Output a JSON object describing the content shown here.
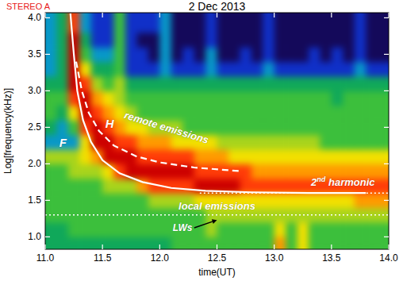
{
  "chart_data": {
    "type": "heatmap",
    "title": "2 Dec 2013",
    "subtitle": "STEREO A",
    "x_label": "time(UT)",
    "y_label": "Log[frequency(kHz)]",
    "xlim": [
      11.0,
      14.0
    ],
    "ylim": [
      0.83,
      4.07
    ],
    "xticks": [
      {
        "value": 11,
        "label": "11.0"
      },
      11.5,
      {
        "value": 12,
        "label": "12.0"
      },
      12.5,
      {
        "value": 13,
        "label": "13.0"
      },
      13.5,
      {
        "value": 14,
        "label": "14.0"
      }
    ],
    "yticks": [
      {
        "value": 1,
        "label": "1.0"
      },
      1.5,
      {
        "value": 2,
        "label": "2.0"
      },
      2.5,
      {
        "value": 3,
        "label": "3.0"
      },
      3.5,
      {
        "value": 4,
        "label": "4.0"
      }
    ],
    "grid": false,
    "x_edges": [
      11.0,
      11.1,
      11.2,
      11.3,
      11.4,
      11.5,
      11.6,
      11.7,
      11.8,
      11.9,
      12.0,
      12.1,
      12.2,
      12.3,
      12.4,
      12.5,
      12.6,
      12.7,
      12.8,
      12.9,
      13.0,
      13.1,
      13.2,
      13.3,
      13.4,
      13.5,
      13.6,
      13.7,
      13.8,
      13.9,
      14.0
    ],
    "y_edges": [
      0.83,
      1.0,
      1.2,
      1.4,
      1.6,
      1.8,
      2.0,
      2.2,
      2.4,
      2.6,
      2.8,
      3.0,
      3.2,
      3.4,
      3.6,
      3.8,
      4.07
    ],
    "z": [
      [
        4,
        4,
        4,
        4,
        4,
        4,
        4,
        4,
        4,
        4,
        4,
        5,
        5,
        5,
        5,
        5,
        5,
        5,
        5,
        5,
        8,
        5,
        7,
        5,
        5,
        5,
        5,
        5,
        5,
        5
      ],
      [
        4,
        4,
        5,
        5,
        5,
        5,
        5,
        5,
        5,
        5,
        5,
        5,
        5,
        5,
        6,
        5,
        5,
        5,
        5,
        5,
        7,
        5,
        7,
        5,
        5,
        5,
        5,
        5,
        5,
        5
      ],
      [
        5,
        5,
        5,
        5,
        5,
        5,
        5,
        5,
        5,
        5,
        5,
        5,
        5,
        5,
        6,
        6,
        6,
        6,
        6,
        6,
        6,
        6,
        6,
        6,
        6,
        6,
        6,
        6,
        6,
        6
      ],
      [
        5,
        5,
        5,
        5,
        5,
        5,
        5,
        5,
        5,
        6,
        6,
        6,
        6,
        7,
        7,
        7,
        7,
        7,
        7,
        7,
        7,
        7,
        7,
        7,
        7,
        7,
        7,
        8,
        8,
        8
      ],
      [
        5,
        5,
        5,
        5,
        5,
        6,
        6,
        6,
        8,
        9,
        9,
        9,
        9,
        10,
        10,
        10,
        10,
        9,
        9,
        9,
        9,
        9,
        9,
        9,
        9,
        9,
        9,
        9,
        9,
        9
      ],
      [
        5,
        5,
        6,
        6,
        6,
        7,
        9,
        10,
        10,
        10,
        10,
        10,
        10,
        9,
        9,
        9,
        9,
        9,
        8,
        8,
        8,
        8,
        8,
        8,
        8,
        8,
        8,
        8,
        8,
        8
      ],
      [
        6,
        6,
        6,
        7,
        8,
        10,
        10,
        10,
        9,
        9,
        9,
        9,
        9,
        8,
        8,
        8,
        7,
        7,
        7,
        7,
        7,
        7,
        7,
        7,
        7,
        7,
        7,
        7,
        7,
        7
      ],
      [
        3,
        3,
        3,
        7,
        10,
        10,
        9,
        9,
        8,
        8,
        8,
        7,
        7,
        7,
        7,
        6,
        6,
        6,
        6,
        6,
        6,
        6,
        6,
        6,
        5,
        5,
        5,
        5,
        5,
        5
      ],
      [
        4,
        3,
        5,
        9,
        10,
        9,
        8,
        7,
        7,
        6,
        6,
        6,
        5,
        5,
        5,
        5,
        5,
        5,
        5,
        5,
        5,
        5,
        5,
        5,
        5,
        5,
        5,
        5,
        5,
        5
      ],
      [
        5,
        4,
        7,
        10,
        9,
        8,
        7,
        6,
        5,
        5,
        5,
        5,
        5,
        5,
        5,
        5,
        5,
        5,
        5,
        5,
        5,
        5,
        5,
        5,
        5,
        5,
        5,
        5,
        5,
        5
      ],
      [
        5,
        5,
        9,
        10,
        8,
        7,
        6,
        5,
        5,
        5,
        5,
        5,
        5,
        5,
        5,
        5,
        5,
        5,
        5,
        5,
        5,
        5,
        5,
        5,
        5,
        4,
        5,
        5,
        5,
        5
      ],
      [
        4,
        4,
        10,
        9,
        6,
        5,
        6,
        4,
        4,
        4,
        4,
        4,
        4,
        4,
        4,
        4,
        4,
        4,
        4,
        4,
        4,
        4,
        4,
        4,
        4,
        4,
        4,
        4,
        4,
        4
      ],
      [
        3,
        4,
        10,
        7,
        4,
        4,
        5,
        2,
        2,
        2,
        3,
        2,
        2,
        2,
        3,
        2,
        2,
        2,
        2,
        3,
        2,
        2,
        2,
        2,
        2,
        2,
        2,
        3,
        2,
        2
      ],
      [
        3,
        4,
        10,
        5,
        3,
        3,
        5,
        2,
        2,
        1,
        3,
        1,
        2,
        1,
        3,
        1,
        1,
        2,
        1,
        2,
        1,
        1,
        1,
        2,
        1,
        2,
        1,
        2,
        1,
        1
      ],
      [
        3,
        4,
        10,
        4,
        2,
        2,
        5,
        2,
        1,
        1,
        3,
        1,
        1,
        1,
        2,
        1,
        1,
        1,
        1,
        2,
        1,
        1,
        1,
        1,
        1,
        1,
        1,
        2,
        1,
        1
      ],
      [
        3,
        4,
        9,
        3,
        2,
        2,
        5,
        2,
        2,
        2,
        3,
        1,
        1,
        1,
        2,
        1,
        1,
        1,
        1,
        2,
        1,
        1,
        1,
        1,
        1,
        1,
        1,
        2,
        1,
        1
      ]
    ],
    "series": [
      {
        "name": "F",
        "type": "line",
        "color": "#ffffff",
        "line_style": "solid",
        "x": [
          11.22,
          11.25,
          11.28,
          11.33,
          11.4,
          11.5,
          11.65,
          11.85,
          12.1,
          12.4,
          12.8,
          13.3,
          13.8
        ],
        "y": [
          4.06,
          3.5,
          3.0,
          2.6,
          2.3,
          2.05,
          1.87,
          1.75,
          1.67,
          1.63,
          1.61,
          1.6,
          1.6
        ]
      },
      {
        "name": "H",
        "type": "line",
        "color": "#ffffff",
        "line_style": "dashed",
        "x": [
          11.27,
          11.32,
          11.38,
          11.47,
          11.6,
          11.8,
          12.0,
          12.3,
          12.7
        ],
        "y": [
          3.4,
          3.0,
          2.7,
          2.45,
          2.25,
          2.1,
          2.02,
          1.95,
          1.9
        ]
      }
    ],
    "reference_lines": [
      {
        "y": 1.6,
        "x": [
          12.35,
          14.0
        ],
        "line_style": "dotted",
        "color": "#ffffff"
      },
      {
        "y": 1.3,
        "x": [
          11.0,
          14.0
        ],
        "line_style": "dotted",
        "color": "#ffffff"
      }
    ],
    "annotations": [
      {
        "text": "remote emissions",
        "x": 12.05,
        "y": 2.45
      },
      {
        "text": "local emissions",
        "x": 12.5,
        "y": 1.37
      },
      {
        "text": "2nd harmonic",
        "x": 13.6,
        "y": 1.7
      },
      {
        "text": "LWs",
        "x": 12.2,
        "y": 1.08,
        "target_x": 12.5,
        "target_y": 1.23
      }
    ]
  }
}
